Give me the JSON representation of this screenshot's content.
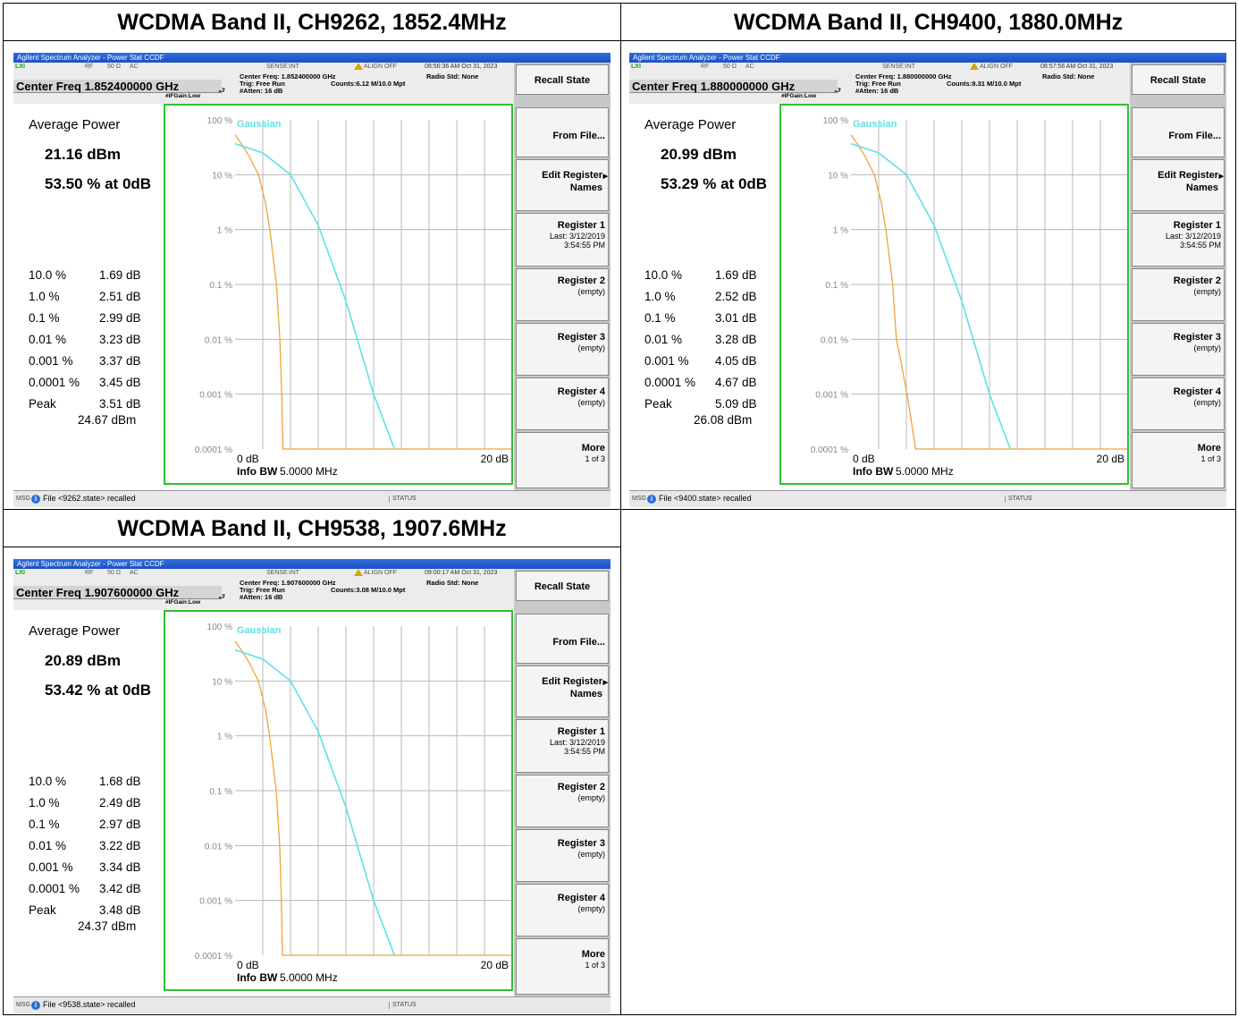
{
  "headings": [
    "WCDMA Band II, CH9262, 1852.4MHz",
    "WCDMA Band II, CH9400, 1880.0MHz",
    "WCDMA Band II, CH9538, 1907.6MHz"
  ],
  "common": {
    "window_title": "Agilent Spectrum Analyzer - Power Stat CCDF",
    "rf": "RF",
    "impedance": "50 Ω",
    "coupling": "AC",
    "sense": "SENSE:INT",
    "align": "ALIGN OFF",
    "radio_std": "Radio Std: None",
    "trig": "Trig: Free Run",
    "atten": "#Atten: 16 dB",
    "ifgain": "#IFGain:Low",
    "gaussian": "Gaussian",
    "avg_power_label": "Average Power",
    "peak_label": "Peak",
    "x_start": "0 dB",
    "x_stop": "20 dB",
    "info_bw_label": "Info BW",
    "info_bw_value": "5.0000 MHz",
    "msg": "MSG",
    "status": "STATUS",
    "y_ticks": [
      "100 %",
      "10 %",
      "1 %",
      "0.1 %",
      "0.01 %",
      "0.001 %",
      "0.0001 %"
    ],
    "softkeys": {
      "recall_state": "Recall State",
      "from_file": "From File...",
      "edit_register_1": "Edit Register",
      "edit_register_2": "Names",
      "register1": "Register 1",
      "register1_sub1": "Last: 3/12/2019",
      "register1_sub2": "3:54:55 PM",
      "register2": "Register 2",
      "register3": "Register 3",
      "register4": "Register 4",
      "empty": "(empty)",
      "more": "More",
      "more_sub": "1 of 3"
    },
    "colors": {
      "trace_orange": "#f0a43a",
      "gaussian_cyan": "#5fe0e8",
      "graticule_green": "#2fc02f"
    }
  },
  "panels": [
    {
      "timestamp": "08:56:36 AM Oct 31, 2023",
      "center_freq_box": "Center Freq 1.852400000 GHz",
      "center_freq_line": "Center Freq: 1.852400000 GHz",
      "counts": "Counts:6.12 M/10.0 Mpt",
      "avg_dbm": "21.16 dBm",
      "pct_at_0db": "53.50 % at 0dB",
      "stats": [
        {
          "label": "10.0 %",
          "value": "1.69 dB"
        },
        {
          "label": "1.0 %",
          "value": "2.51 dB"
        },
        {
          "label": "0.1 %",
          "value": "2.99 dB"
        },
        {
          "label": "0.01 %",
          "value": "3.23 dB"
        },
        {
          "label": "0.001 %",
          "value": "3.37 dB"
        },
        {
          "label": "0.0001 %",
          "value": "3.45 dB"
        }
      ],
      "peak_db": "3.51 dB",
      "peak_dbm": "24.67 dBm",
      "msg_text": "File <9262.state> recalled",
      "chart_data": {
        "type": "line",
        "xlabel": "",
        "ylabel": "",
        "xlim": [
          0,
          20
        ],
        "ylim_percent_log": [
          0.0001,
          100
        ],
        "series": [
          {
            "name": "",
            "color": "#f0a43a",
            "x": [
              0,
              0.5,
              1.0,
              1.69,
              2.2,
              2.51,
              2.99,
              3.23,
              3.37,
              3.45,
              3.51,
              20
            ],
            "y": [
              53.5,
              35,
              22,
              10,
              3,
              1.0,
              0.1,
              0.01,
              0.001,
              0.0001,
              0.0001,
              0.0001
            ]
          },
          {
            "name": "Gaussian",
            "color": "#5fe0e8",
            "x": [
              0,
              2,
              4,
              6,
              8,
              10,
              11.5
            ],
            "y": [
              36.8,
              25,
              10,
              1.2,
              0.05,
              0.001,
              0.0001
            ]
          }
        ]
      }
    },
    {
      "timestamp": "08:57:56 AM Oct 31, 2023",
      "center_freq_box": "Center Freq 1.880000000 GHz",
      "center_freq_line": "Center Freq: 1.880000000 GHz",
      "counts": "Counts:8.31 M/10.0 Mpt",
      "avg_dbm": "20.99 dBm",
      "pct_at_0db": "53.29 % at 0dB",
      "stats": [
        {
          "label": "10.0 %",
          "value": "1.69 dB"
        },
        {
          "label": "1.0 %",
          "value": "2.52 dB"
        },
        {
          "label": "0.1 %",
          "value": "3.01 dB"
        },
        {
          "label": "0.01 %",
          "value": "3.28 dB"
        },
        {
          "label": "0.001 %",
          "value": "4.05 dB"
        },
        {
          "label": "0.0001 %",
          "value": "4.67 dB"
        }
      ],
      "peak_db": "5.09 dB",
      "peak_dbm": "26.08 dBm",
      "msg_text": "File <9400.state> recalled",
      "chart_data": {
        "type": "line",
        "xlabel": "",
        "ylabel": "",
        "xlim": [
          0,
          20
        ],
        "ylim_percent_log": [
          0.0001,
          100
        ],
        "series": [
          {
            "name": "",
            "color": "#f0a43a",
            "x": [
              0,
              0.5,
              1.0,
              1.69,
              2.2,
              2.52,
              3.01,
              3.28,
              3.6,
              4.05,
              4.67,
              5.09,
              20
            ],
            "y": [
              53.3,
              35,
              22,
              10,
              3,
              1.0,
              0.1,
              0.01,
              0.004,
              0.001,
              0.0001,
              0.0001,
              0.0001
            ]
          },
          {
            "name": "Gaussian",
            "color": "#5fe0e8",
            "x": [
              0,
              2,
              4,
              6,
              8,
              10,
              11.5
            ],
            "y": [
              36.8,
              25,
              10,
              1.2,
              0.05,
              0.001,
              0.0001
            ]
          }
        ]
      }
    },
    {
      "timestamp": "09:00:17 AM Oct 31, 2023",
      "center_freq_box": "Center Freq 1.907600000 GHz",
      "center_freq_line": "Center Freq: 1.907600000 GHz",
      "counts": "Counts:3.08 M/10.0 Mpt",
      "avg_dbm": "20.89 dBm",
      "pct_at_0db": "53.42 % at 0dB",
      "stats": [
        {
          "label": "10.0 %",
          "value": "1.68 dB"
        },
        {
          "label": "1.0 %",
          "value": "2.49 dB"
        },
        {
          "label": "0.1 %",
          "value": "2.97 dB"
        },
        {
          "label": "0.01 %",
          "value": "3.22 dB"
        },
        {
          "label": "0.001 %",
          "value": "3.34 dB"
        },
        {
          "label": "0.0001 %",
          "value": "3.42 dB"
        }
      ],
      "peak_db": "3.48 dB",
      "peak_dbm": "24.37 dBm",
      "msg_text": "File <9538.state> recalled",
      "chart_data": {
        "type": "line",
        "xlabel": "",
        "ylabel": "",
        "xlim": [
          0,
          20
        ],
        "ylim_percent_log": [
          0.0001,
          100
        ],
        "series": [
          {
            "name": "",
            "color": "#f0a43a",
            "x": [
              0,
              0.5,
              1.0,
              1.68,
              2.2,
              2.49,
              2.97,
              3.22,
              3.34,
              3.42,
              3.48,
              20
            ],
            "y": [
              53.4,
              35,
              22,
              10,
              3,
              1.0,
              0.1,
              0.01,
              0.001,
              0.0001,
              0.0001,
              0.0001
            ]
          },
          {
            "name": "Gaussian",
            "color": "#5fe0e8",
            "x": [
              0,
              2,
              4,
              6,
              8,
              10,
              11.5
            ],
            "y": [
              36.8,
              25,
              10,
              1.2,
              0.05,
              0.001,
              0.0001
            ]
          }
        ]
      }
    }
  ]
}
